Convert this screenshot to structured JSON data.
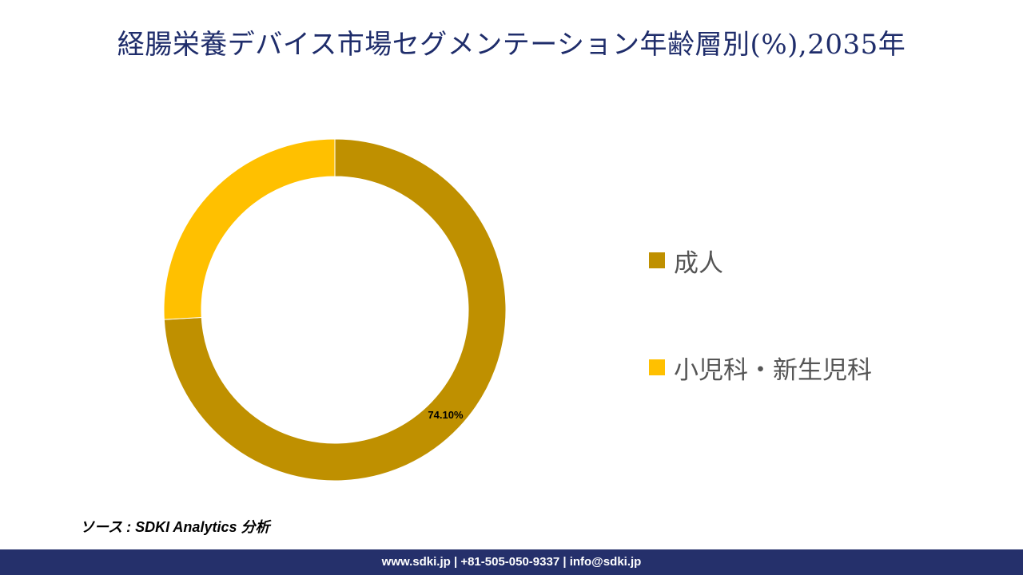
{
  "title": "経腸栄養デバイス市場セグメンテーション年齢層別(%),2035年",
  "chart_data": {
    "type": "pie",
    "donut": true,
    "categories": [
      "成人",
      "小児科・新生児科"
    ],
    "values": [
      74.1,
      25.9
    ],
    "data_labels": [
      "74.10%",
      ""
    ],
    "colors": [
      "#bf9000",
      "#ffc000"
    ],
    "legend_position": "right"
  },
  "source": "ソース : SDKI Analytics 分析",
  "footer": "www.sdki.jp | +81-505-050-9337 | info@sdki.jp"
}
